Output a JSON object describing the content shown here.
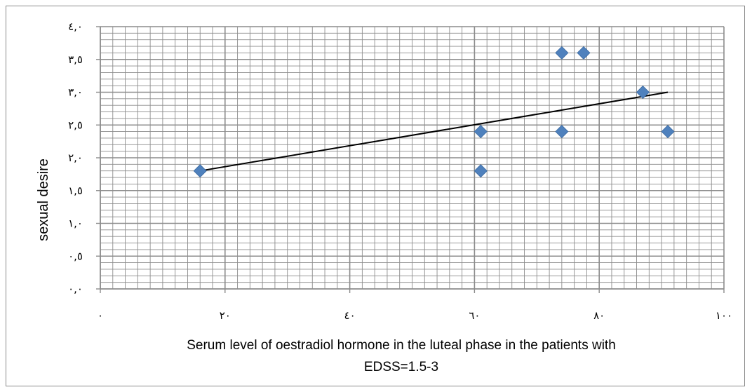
{
  "chart_data": {
    "type": "scatter",
    "xlabel_lines": [
      "Serum level of oestradiol hormone in the luteal phase in the patients with",
      "EDSS=1.5-3"
    ],
    "ylabel": "sexual desire",
    "xlim": [
      0,
      100
    ],
    "ylim": [
      0,
      4
    ],
    "x_ticks": [
      {
        "value": 0,
        "label": "٠"
      },
      {
        "value": 20,
        "label": "٢٠"
      },
      {
        "value": 40,
        "label": "٤٠"
      },
      {
        "value": 60,
        "label": "٦٠"
      },
      {
        "value": 80,
        "label": "٨٠"
      },
      {
        "value": 100,
        "label": "١٠٠"
      }
    ],
    "y_ticks": [
      {
        "value": 0,
        "label": "٠,٠"
      },
      {
        "value": 0.5,
        "label": "٠,٥"
      },
      {
        "value": 1.0,
        "label": "١,٠"
      },
      {
        "value": 1.5,
        "label": "١,٥"
      },
      {
        "value": 2.0,
        "label": "٢,٠"
      },
      {
        "value": 2.5,
        "label": "٢,٥"
      },
      {
        "value": 3.0,
        "label": "٣,٠"
      },
      {
        "value": 3.5,
        "label": "٣,٥"
      },
      {
        "value": 4.0,
        "label": "٤,٠"
      }
    ],
    "grid": true,
    "minor_grid": true,
    "points": [
      {
        "x": 16,
        "y": 1.8
      },
      {
        "x": 61,
        "y": 1.8
      },
      {
        "x": 61,
        "y": 2.4
      },
      {
        "x": 74,
        "y": 2.4
      },
      {
        "x": 74,
        "y": 3.6
      },
      {
        "x": 77.5,
        "y": 3.6
      },
      {
        "x": 87,
        "y": 3.0
      },
      {
        "x": 91,
        "y": 2.4
      }
    ],
    "trendline": {
      "x": [
        16,
        91
      ],
      "y": [
        1.8,
        3.0
      ]
    },
    "colors": {
      "marker": "#4f81bd",
      "trendline": "#000000",
      "grid": "#8c8c8c",
      "axis": "#8c8c8c"
    }
  }
}
